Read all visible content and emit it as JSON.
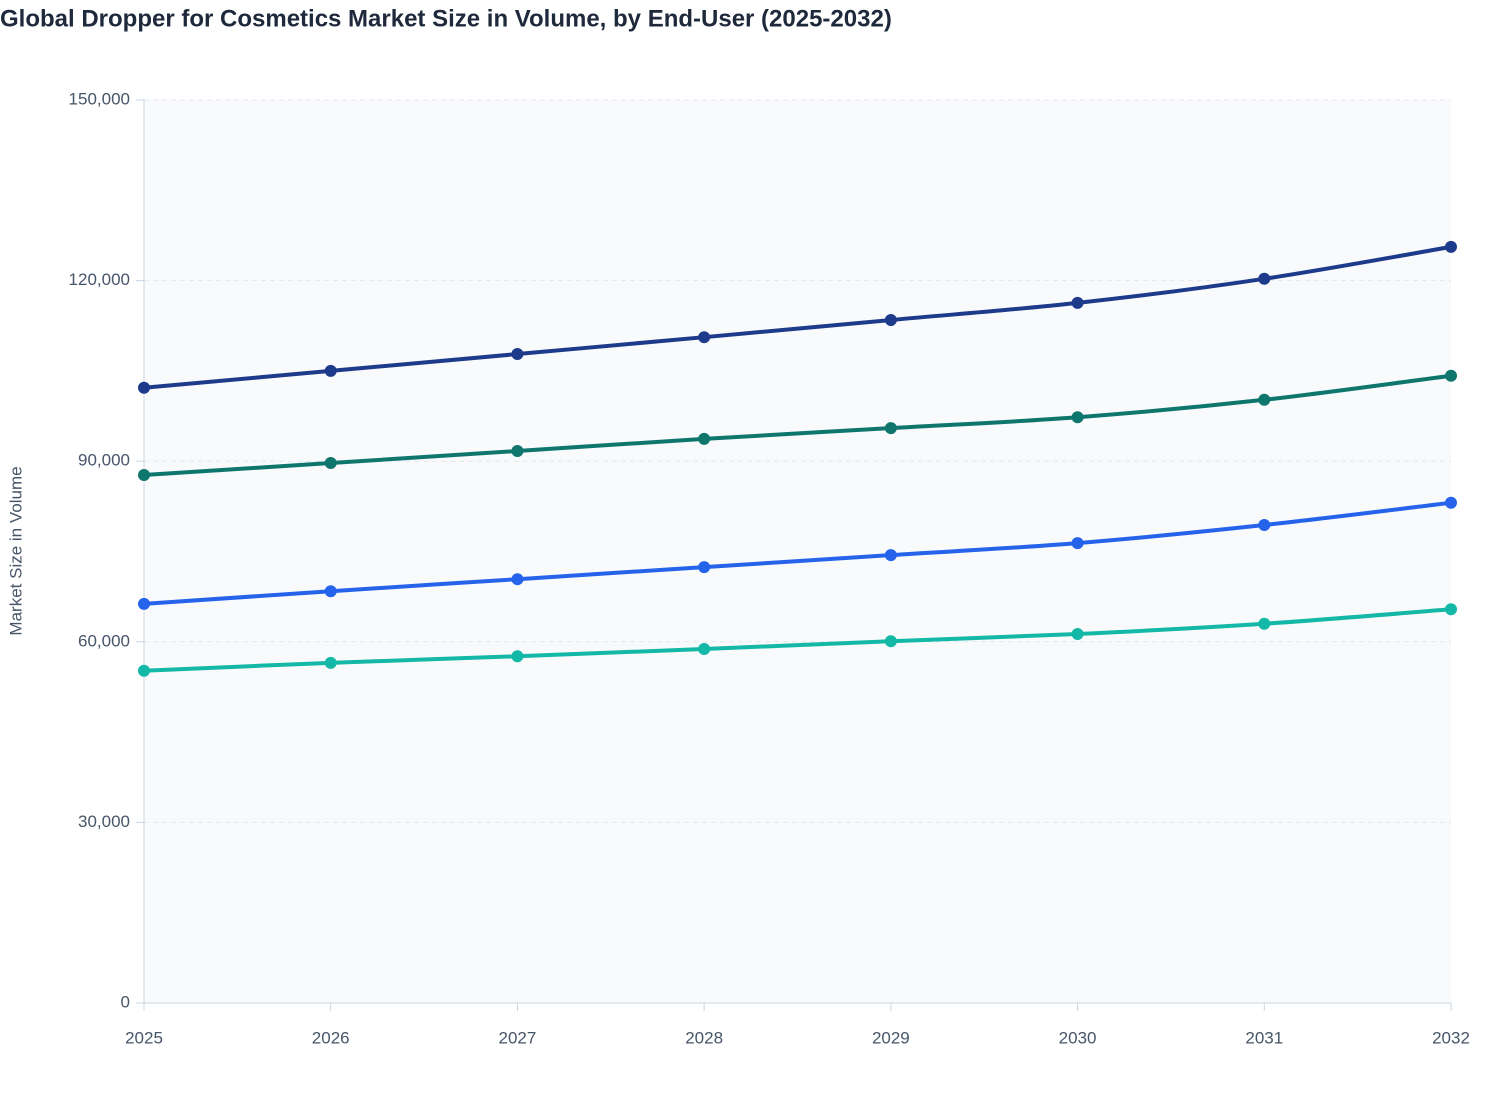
{
  "chart_data": {
    "type": "line",
    "title": "Global Dropper for Cosmetics Market Size in Volume, by End-User (2025-2032)",
    "y_label": "Market Size in Volume",
    "x": [
      2025,
      2026,
      2027,
      2028,
      2029,
      2030,
      2031,
      2032
    ],
    "xlim": [
      2025,
      2032
    ],
    "xticks": [
      2025,
      2026,
      2027,
      2028,
      2029,
      2030,
      2031,
      2032
    ],
    "ylim": [
      0,
      150000
    ],
    "yticks": [
      0,
      {
        "value": 30000,
        "label": "30,000"
      },
      {
        "value": 60000,
        "label": "60,000"
      },
      {
        "value": 90000,
        "label": "90,000"
      },
      {
        "value": 120000,
        "label": "120,000"
      },
      {
        "value": 150000,
        "label": "150,000"
      }
    ],
    "grid": true,
    "series": [
      {
        "color": "#1e3a8a",
        "values": [
          102200,
          105000,
          107800,
          110600,
          113450,
          116300,
          120300,
          125600
        ]
      },
      {
        "color": "#0f766e",
        "values": [
          87700,
          89700,
          91700,
          93700,
          95500,
          97300,
          100200,
          104200
        ]
      },
      {
        "color": "#2563eb",
        "values": [
          66300,
          68400,
          70400,
          72400,
          74400,
          76400,
          79400,
          83100
        ]
      },
      {
        "color": "#14b8a6",
        "values": [
          55200,
          56500,
          57600,
          58800,
          60100,
          61300,
          63000,
          65400
        ]
      }
    ]
  }
}
